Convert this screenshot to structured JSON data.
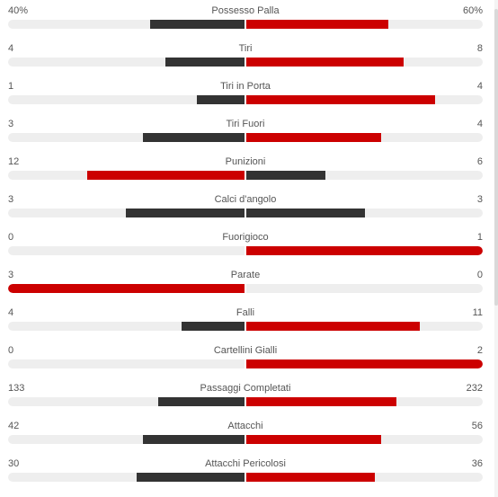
{
  "colors": {
    "winner": "#cc0000",
    "loser": "#333333",
    "track": "#eeeeee",
    "label": "#555555"
  },
  "stats": [
    {
      "name": "Possesso Palla",
      "home": "40%",
      "away": "60%",
      "home_value": 40,
      "away_value": 60
    },
    {
      "name": "Tiri",
      "home": "4",
      "away": "8",
      "home_value": 4,
      "away_value": 8
    },
    {
      "name": "Tiri in Porta",
      "home": "1",
      "away": "4",
      "home_value": 1,
      "away_value": 4
    },
    {
      "name": "Tiri Fuori",
      "home": "3",
      "away": "4",
      "home_value": 3,
      "away_value": 4
    },
    {
      "name": "Punizioni",
      "home": "12",
      "away": "6",
      "home_value": 12,
      "away_value": 6
    },
    {
      "name": "Calci d'angolo",
      "home": "3",
      "away": "3",
      "home_value": 3,
      "away_value": 3
    },
    {
      "name": "Fuorigioco",
      "home": "0",
      "away": "1",
      "home_value": 0,
      "away_value": 1
    },
    {
      "name": "Parate",
      "home": "3",
      "away": "0",
      "home_value": 3,
      "away_value": 0
    },
    {
      "name": "Falli",
      "home": "4",
      "away": "11",
      "home_value": 4,
      "away_value": 11
    },
    {
      "name": "Cartellini Gialli",
      "home": "0",
      "away": "2",
      "home_value": 0,
      "away_value": 2
    },
    {
      "name": "Passaggi Completati",
      "home": "133",
      "away": "232",
      "home_value": 133,
      "away_value": 232
    },
    {
      "name": "Attacchi",
      "home": "42",
      "away": "56",
      "home_value": 42,
      "away_value": 56
    },
    {
      "name": "Attacchi Pericolosi",
      "home": "30",
      "away": "36",
      "home_value": 30,
      "away_value": 36
    }
  ]
}
